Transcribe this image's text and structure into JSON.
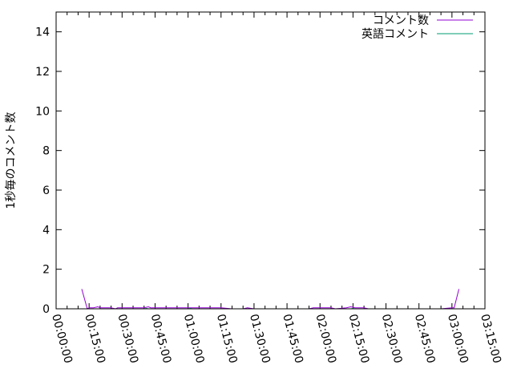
{
  "chart_data": {
    "type": "line",
    "title": "",
    "xlabel": "",
    "ylabel": "1秒毎のコメント数",
    "xlim": [
      "00:00:00",
      "03:15:00"
    ],
    "ylim": [
      0,
      15
    ],
    "x_ticks": [
      "00:00:00",
      "00:15:00",
      "00:30:00",
      "00:45:00",
      "01:00:00",
      "01:15:00",
      "01:30:00",
      "01:45:00",
      "02:00:00",
      "02:15:00",
      "02:30:00",
      "02:45:00",
      "03:00:00",
      "03:15:00"
    ],
    "y_ticks": [
      "0",
      "2",
      "4",
      "6",
      "8",
      "10",
      "12",
      "14"
    ],
    "grid": false,
    "legend": "top-right",
    "series": [
      {
        "name": "コメント数",
        "color": "#9400d3",
        "points": [
          [
            "00:11:40",
            1
          ],
          [
            "00:14:10",
            0
          ],
          [
            "00:15:00",
            0.05
          ],
          [
            "00:17:00",
            0.05
          ],
          [
            "00:19:00",
            0.1
          ],
          [
            "00:20:00",
            0.05
          ],
          [
            "00:25:00",
            0.05
          ],
          [
            "00:27:00",
            0
          ],
          [
            "00:28:00",
            0.05
          ],
          [
            "00:35:00",
            0.05
          ],
          [
            "00:40:00",
            0.05
          ],
          [
            "00:42:00",
            0.1
          ],
          [
            "00:43:00",
            0.05
          ],
          [
            "00:50:00",
            0.05
          ],
          [
            "01:00:00",
            0.05
          ],
          [
            "01:10:00",
            0.05
          ],
          [
            "01:15:00",
            0.05
          ],
          [
            "01:20:00",
            0
          ],
          [
            "01:25:00",
            0
          ],
          [
            "01:27:00",
            0.05
          ],
          [
            "01:30:00",
            0
          ],
          [
            "01:55:00",
            0
          ],
          [
            "01:57:00",
            0.05
          ],
          [
            "02:05:00",
            0.05
          ],
          [
            "02:07:00",
            0
          ],
          [
            "02:12:00",
            0.05
          ],
          [
            "02:14:00",
            0.1
          ],
          [
            "02:16:00",
            0.05
          ],
          [
            "02:20:00",
            0.05
          ],
          [
            "02:22:00",
            0
          ],
          [
            "02:46:00",
            0
          ],
          [
            "02:55:00",
            0
          ],
          [
            "03:00:00",
            0.05
          ],
          [
            "03:01:00",
            0.05
          ],
          [
            "03:03:10",
            1
          ]
        ]
      },
      {
        "name": "英語コメント",
        "color": "#009e73",
        "points": [
          [
            "00:14:10",
            0
          ],
          [
            "00:40:00",
            0
          ],
          [
            "00:41:00",
            0.02
          ],
          [
            "00:42:00",
            0
          ],
          [
            "01:00:00",
            0
          ],
          [
            "01:01:00",
            0.02
          ],
          [
            "01:02:00",
            0
          ],
          [
            "02:14:00",
            0
          ],
          [
            "02:15:00",
            0.02
          ],
          [
            "02:16:00",
            0
          ],
          [
            "03:01:00",
            0
          ]
        ]
      }
    ]
  }
}
